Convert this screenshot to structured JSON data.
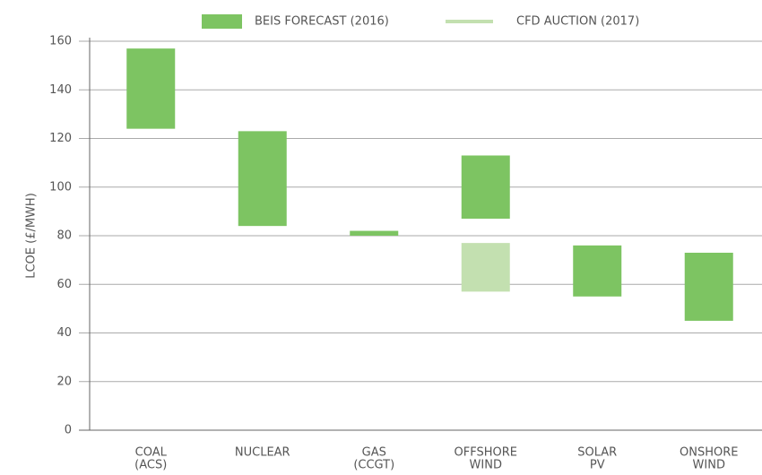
{
  "chart_data": {
    "type": "floating_bar",
    "y_label": "LCOE (£/MWH)",
    "categories": [
      [
        "COAL",
        "(ACS)"
      ],
      [
        "NUCLEAR"
      ],
      [
        "GAS",
        "(CCGT)"
      ],
      [
        "OFFSHORE",
        "WIND"
      ],
      [
        "SOLAR",
        "PV"
      ],
      [
        "ONSHORE",
        "WIND"
      ]
    ],
    "series": [
      {
        "name": "BEIS FORECAST (2016)",
        "color": "#7dc462",
        "low": [
          124,
          84,
          80,
          87,
          55,
          45
        ],
        "high": [
          157,
          123,
          82,
          113,
          76,
          73
        ]
      },
      {
        "name": "CFD AUCTION (2017)",
        "color": "#c3e0b0",
        "low": [
          null,
          null,
          null,
          57,
          null,
          null
        ],
        "high": [
          null,
          null,
          null,
          77,
          null,
          null
        ]
      }
    ],
    "ylim": [
      0,
      160
    ],
    "yticks": [
      0,
      20,
      40,
      60,
      80,
      100,
      120,
      140,
      160
    ],
    "grid": true,
    "legend": "top"
  }
}
